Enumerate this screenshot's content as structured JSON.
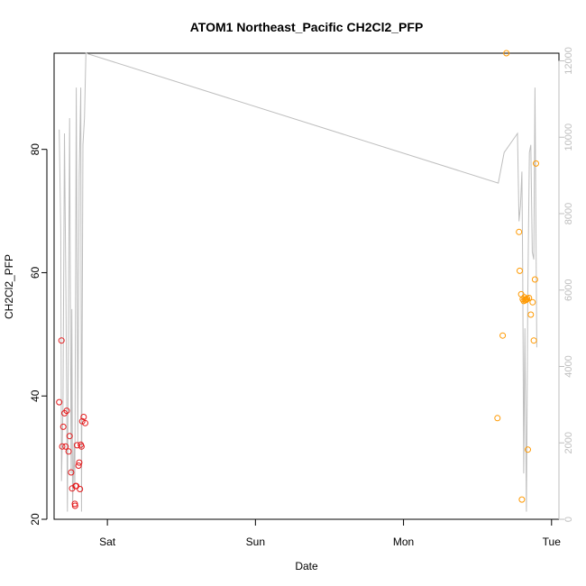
{
  "chart_data": {
    "type": "scatter",
    "title": "ATOM1 Northeast_Pacific CH2Cl2_PFP",
    "xlabel": "Date",
    "ylabel": "CH2Cl2_PFP",
    "x_axis": {
      "type": "date",
      "ticks": [
        "Sat",
        "Sun",
        "Mon",
        "Tue"
      ],
      "range_days": [
        -0.36,
        3.05
      ]
    },
    "ylim": [
      20,
      95.6
    ],
    "yticks": [
      20,
      40,
      60,
      80
    ],
    "y2lim": [
      0,
      12200
    ],
    "y2ticks": [
      0,
      2000,
      4000,
      6000,
      8000,
      10000,
      12000
    ],
    "y2_color": "#bebebe",
    "grid": false,
    "series": [
      {
        "color": "#e41a1c",
        "x": [
          -0.325,
          -0.31,
          -0.305,
          -0.298,
          -0.29,
          -0.282,
          -0.275,
          -0.262,
          -0.255,
          -0.245,
          -0.238,
          -0.22,
          -0.218,
          -0.215,
          -0.21,
          -0.205,
          -0.195,
          -0.19,
          -0.185,
          -0.18,
          -0.175,
          -0.17,
          -0.16,
          -0.15
        ],
        "y": [
          39.0,
          49.0,
          31.8,
          35.0,
          37.2,
          31.8,
          37.6,
          31.0,
          33.5,
          27.6,
          25.0,
          22.5,
          22.2,
          25.4,
          25.4,
          32.0,
          28.7,
          29.2,
          24.9,
          32.1,
          31.8,
          35.9,
          36.6,
          35.6
        ]
      },
      {
        "color": "#ff9900",
        "x": [
          2.635,
          2.67,
          2.695,
          2.78,
          2.785,
          2.795,
          2.8,
          2.805,
          2.812,
          2.817,
          2.822,
          2.826,
          2.83,
          2.835,
          2.84,
          2.848,
          2.86,
          2.872,
          2.88,
          2.888,
          2.895
        ],
        "y": [
          36.4,
          49.8,
          95.6,
          66.6,
          60.3,
          56.5,
          23.2,
          55.7,
          55.4,
          56.0,
          55.5,
          55.7,
          55.6,
          55.8,
          31.3,
          55.9,
          53.2,
          55.2,
          49.0,
          58.9,
          77.7
        ]
      }
    ],
    "line": {
      "color": "#bebebe",
      "axis": "right",
      "x": [
        -0.325,
        -0.315,
        -0.31,
        -0.3,
        -0.29,
        -0.28,
        -0.27,
        -0.262,
        -0.255,
        -0.245,
        -0.24,
        -0.235,
        -0.225,
        -0.22,
        -0.21,
        -0.2,
        -0.19,
        -0.18,
        -0.175,
        -0.165,
        -0.155,
        -0.145,
        2.64,
        2.68,
        2.77,
        2.78,
        2.79,
        2.8,
        2.805,
        2.812,
        2.82,
        2.83,
        2.84,
        2.85,
        2.86,
        2.87,
        2.88,
        2.888,
        2.9
      ],
      "y": [
        10200,
        7500,
        1000,
        3000,
        10100,
        6000,
        200,
        6000,
        10500,
        1200,
        5500,
        300,
        2000,
        800,
        11300,
        2000,
        9000,
        11300,
        200,
        9800,
        10500,
        12200,
        8800,
        9600,
        10100,
        7800,
        8200,
        9100,
        6500,
        1200,
        5000,
        200,
        6000,
        9600,
        9800,
        7000,
        6800,
        11300,
        4500
      ]
    }
  }
}
